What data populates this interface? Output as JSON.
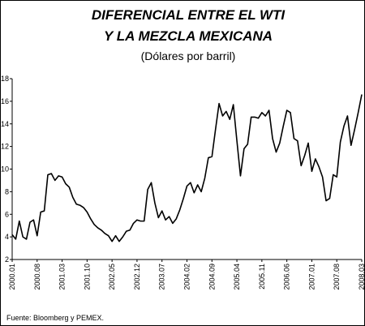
{
  "chart_data": {
    "type": "line",
    "title": [
      "DIFERENCIAL ENTRE EL WTI",
      "Y LA MEZCLA MEXICANA"
    ],
    "subtitle": "(Dólares por barril)",
    "source": "Fuente: Bloomberg y PEMEX.",
    "color": "#000000",
    "categories": [
      "2000.01",
      null,
      null,
      null,
      null,
      null,
      null,
      "2000.08",
      null,
      null,
      null,
      null,
      null,
      null,
      "2001.03",
      null,
      null,
      null,
      null,
      null,
      null,
      "2001.10",
      null,
      null,
      null,
      null,
      null,
      null,
      "2002.05",
      null,
      null,
      null,
      null,
      null,
      null,
      "2002.12",
      null,
      null,
      null,
      null,
      null,
      null,
      "2003.07",
      null,
      null,
      null,
      null,
      null,
      null,
      "2004.02",
      null,
      null,
      null,
      null,
      null,
      null,
      "2004.09",
      null,
      null,
      null,
      null,
      null,
      null,
      "2005.04",
      null,
      null,
      null,
      null,
      null,
      null,
      "2005.11",
      null,
      null,
      null,
      null,
      null,
      null,
      "2006.06",
      null,
      null,
      null,
      null,
      null,
      null,
      "2007.01",
      null,
      null,
      null,
      null,
      null,
      null,
      "2007.08",
      null,
      null,
      null,
      null,
      null,
      null,
      "2008.03"
    ],
    "values": [
      4.2,
      3.8,
      5.4,
      4.0,
      3.8,
      5.3,
      5.5,
      4.1,
      6.2,
      6.3,
      9.5,
      9.6,
      9.0,
      9.4,
      9.3,
      8.7,
      8.4,
      7.5,
      6.9,
      6.8,
      6.6,
      6.2,
      5.6,
      5.1,
      4.8,
      4.6,
      4.3,
      4.1,
      3.6,
      4.1,
      3.6,
      4.0,
      4.5,
      4.6,
      5.2,
      5.5,
      5.4,
      5.4,
      8.2,
      8.8,
      7.0,
      5.7,
      6.3,
      5.5,
      5.8,
      5.2,
      5.6,
      6.4,
      7.4,
      8.5,
      8.8,
      7.9,
      8.6,
      8.0,
      9.2,
      11.0,
      11.1,
      13.5,
      15.8,
      14.7,
      15.1,
      14.4,
      15.7,
      12.5,
      9.4,
      11.8,
      12.2,
      14.6,
      14.6,
      14.5,
      15.0,
      14.7,
      15.2,
      12.7,
      11.5,
      12.3,
      13.8,
      15.2,
      15.0,
      12.7,
      12.5,
      10.3,
      11.2,
      12.3,
      9.8,
      10.9,
      10.2,
      9.3,
      7.2,
      7.4,
      9.5,
      9.3,
      12.4,
      13.8,
      14.7,
      12.1,
      13.5,
      15.0,
      16.6
    ],
    "ylim": [
      2,
      18
    ],
    "yticks": [
      2,
      4,
      6,
      8,
      10,
      12,
      14,
      16,
      18
    ]
  }
}
